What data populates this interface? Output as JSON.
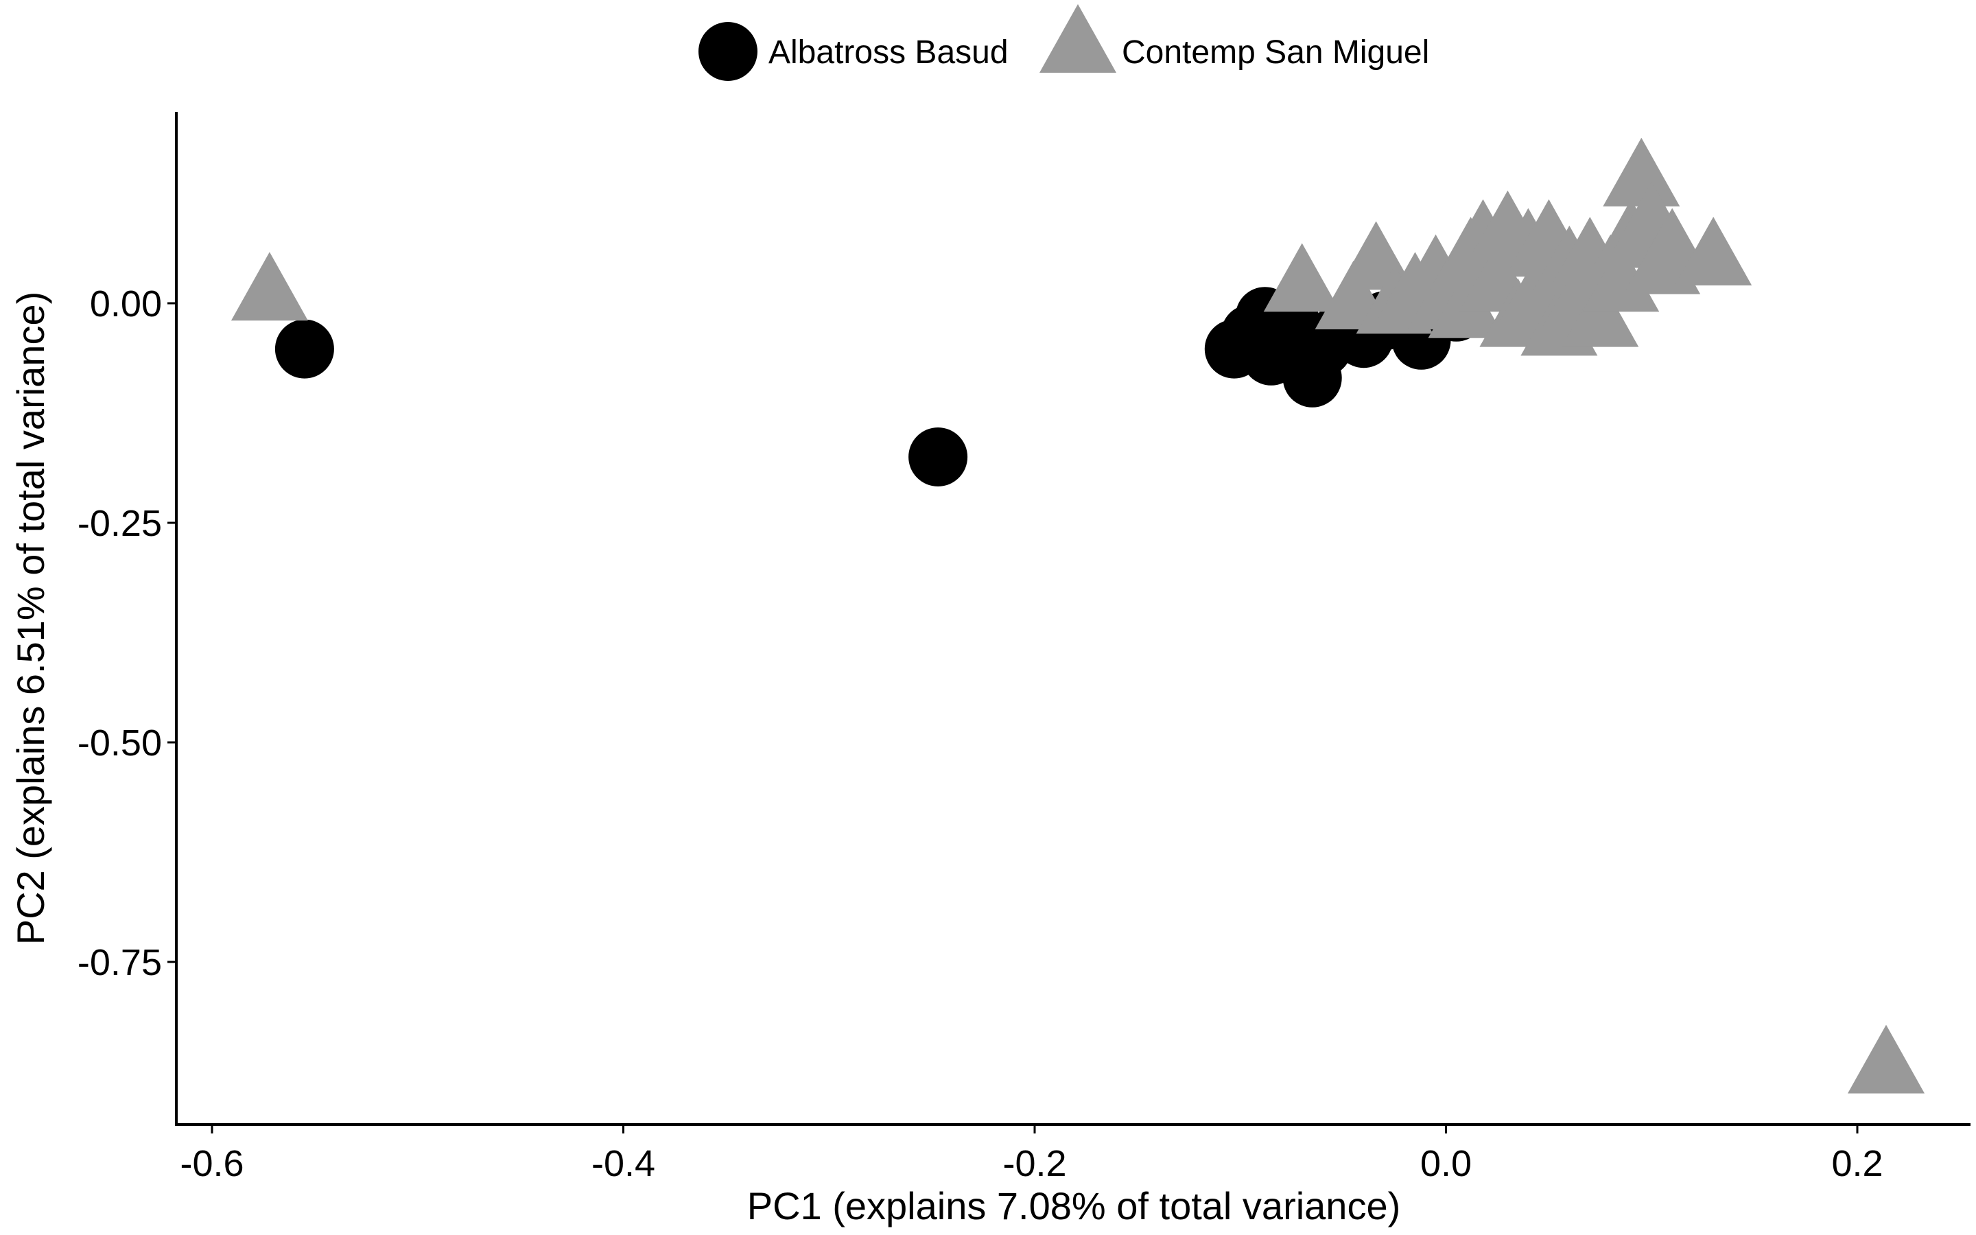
{
  "chart_data": {
    "type": "scatter",
    "title": "",
    "xlabel": "PC1 (explains 7.08% of total variance)",
    "ylabel": "PC2 (explains 6.51% of total variance)",
    "xlim": [
      -0.625,
      0.625
    ],
    "ylim": [
      -0.94,
      0.22
    ],
    "xticks": [
      {
        "value": -0.6,
        "label": "-0.6"
      },
      {
        "value": -0.4,
        "label": "-0.4"
      },
      {
        "value": -0.2,
        "label": "-0.2"
      },
      {
        "value": 0.0,
        "label": "0.0"
      },
      {
        "value": 0.2,
        "label": "0.2"
      }
    ],
    "yticks": [
      {
        "value": 0.0,
        "label": "0.00"
      },
      {
        "value": -0.25,
        "label": "-0.25"
      },
      {
        "value": -0.5,
        "label": "-0.50"
      },
      {
        "value": -0.75,
        "label": "-0.75"
      }
    ],
    "grid": false,
    "legend": {
      "placement": "top-center"
    },
    "series": [
      {
        "name": "Albatross Basud",
        "marker": "circle",
        "color": "#000000",
        "points": [
          {
            "x": -0.555,
            "y": -0.052
          },
          {
            "x": -0.247,
            "y": -0.175
          },
          {
            "x": -0.103,
            "y": -0.052
          },
          {
            "x": -0.095,
            "y": -0.035
          },
          {
            "x": -0.088,
            "y": -0.015
          },
          {
            "x": -0.085,
            "y": -0.06
          },
          {
            "x": -0.08,
            "y": -0.045
          },
          {
            "x": -0.075,
            "y": -0.025
          },
          {
            "x": -0.065,
            "y": -0.085
          },
          {
            "x": -0.06,
            "y": -0.05
          },
          {
            "x": -0.05,
            "y": -0.03
          },
          {
            "x": -0.04,
            "y": -0.04
          },
          {
            "x": -0.03,
            "y": -0.02
          },
          {
            "x": -0.012,
            "y": -0.042
          },
          {
            "x": 0.005,
            "y": -0.01
          }
        ]
      },
      {
        "name": "Contemp San Miguel",
        "marker": "triangle",
        "color": "#999999",
        "points": [
          {
            "x": -0.572,
            "y": 0.01
          },
          {
            "x": 0.214,
            "y": -0.87
          },
          {
            "x": -0.07,
            "y": 0.02
          },
          {
            "x": -0.034,
            "y": 0.045
          },
          {
            "x": -0.045,
            "y": 0.0
          },
          {
            "x": -0.025,
            "y": -0.005
          },
          {
            "x": -0.015,
            "y": 0.01
          },
          {
            "x": -0.005,
            "y": 0.03
          },
          {
            "x": 0.0,
            "y": 0.0
          },
          {
            "x": 0.01,
            "y": -0.01
          },
          {
            "x": 0.012,
            "y": 0.05
          },
          {
            "x": 0.018,
            "y": 0.07
          },
          {
            "x": 0.025,
            "y": 0.02
          },
          {
            "x": 0.03,
            "y": 0.08
          },
          {
            "x": 0.035,
            "y": -0.02
          },
          {
            "x": 0.04,
            "y": 0.06
          },
          {
            "x": 0.045,
            "y": 0.01
          },
          {
            "x": 0.05,
            "y": 0.07
          },
          {
            "x": 0.055,
            "y": -0.03
          },
          {
            "x": 0.06,
            "y": 0.04
          },
          {
            "x": 0.065,
            "y": 0.0
          },
          {
            "x": 0.07,
            "y": 0.05
          },
          {
            "x": 0.075,
            "y": -0.02
          },
          {
            "x": 0.08,
            "y": 0.03
          },
          {
            "x": 0.085,
            "y": 0.02
          },
          {
            "x": 0.09,
            "y": 0.07
          },
          {
            "x": 0.095,
            "y": 0.14
          },
          {
            "x": 0.1,
            "y": 0.09
          },
          {
            "x": 0.105,
            "y": 0.04
          },
          {
            "x": 0.11,
            "y": 0.06
          },
          {
            "x": 0.13,
            "y": 0.05
          }
        ]
      }
    ]
  }
}
